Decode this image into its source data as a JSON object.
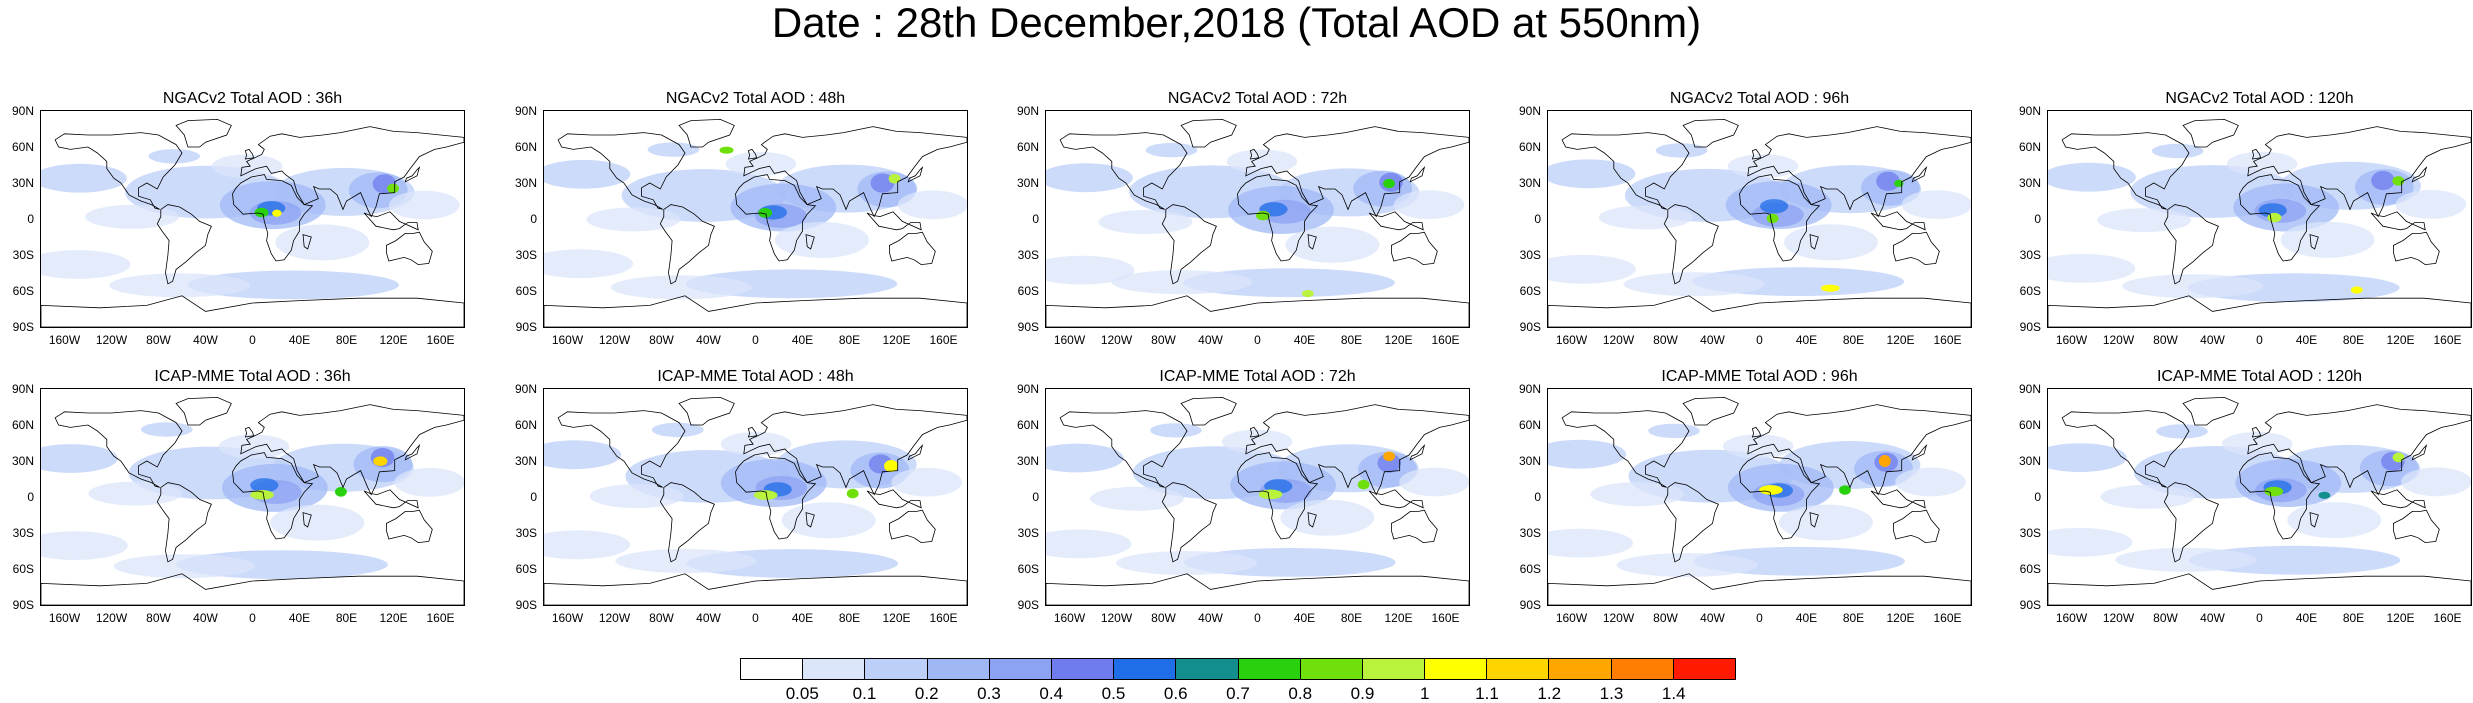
{
  "title": "Date : 28th December,2018 (Total AOD at 550nm)",
  "lat_labels": [
    "90N",
    "60N",
    "30N",
    "0",
    "30S",
    "60S",
    "90S"
  ],
  "lon_labels": [
    "160W",
    "120W",
    "80W",
    "40W",
    "0",
    "40E",
    "80E",
    "120E",
    "160E"
  ],
  "panels": [
    {
      "title": "NGACv2 Total AOD : 36h",
      "model": "NGACv2",
      "lead": "36h"
    },
    {
      "title": "NGACv2 Total AOD : 48h",
      "model": "NGACv2",
      "lead": "48h"
    },
    {
      "title": "NGACv2 Total AOD : 72h",
      "model": "NGACv2",
      "lead": "72h"
    },
    {
      "title": "NGACv2 Total AOD : 96h",
      "model": "NGACv2",
      "lead": "96h"
    },
    {
      "title": "NGACv2 Total AOD : 120h",
      "model": "NGACv2",
      "lead": "120h"
    },
    {
      "title": "ICAP-MME Total AOD : 36h",
      "model": "ICAP-MME",
      "lead": "36h"
    },
    {
      "title": "ICAP-MME Total AOD : 48h",
      "model": "ICAP-MME",
      "lead": "48h"
    },
    {
      "title": "ICAP-MME Total AOD : 72h",
      "model": "ICAP-MME",
      "lead": "72h"
    },
    {
      "title": "ICAP-MME Total AOD : 96h",
      "model": "ICAP-MME",
      "lead": "96h"
    },
    {
      "title": "ICAP-MME Total AOD : 120h",
      "model": "ICAP-MME",
      "lead": "120h"
    }
  ],
  "colorbar": {
    "labels": [
      "0.05",
      "0.1",
      "0.2",
      "0.3",
      "0.4",
      "0.5",
      "0.6",
      "0.7",
      "0.8",
      "0.9",
      "1",
      "1.1",
      "1.2",
      "1.3",
      "1.4"
    ],
    "colors": [
      "#ffffff",
      "#dbe6fb",
      "#bccff8",
      "#9fb8f5",
      "#8ca2f3",
      "#6f7cee",
      "#1f6ee8",
      "#128f8c",
      "#28d00e",
      "#6fe00c",
      "#b9f33b",
      "#ffff00",
      "#ffd500",
      "#ffa600",
      "#ff7d00",
      "#ff1a00"
    ]
  }
}
